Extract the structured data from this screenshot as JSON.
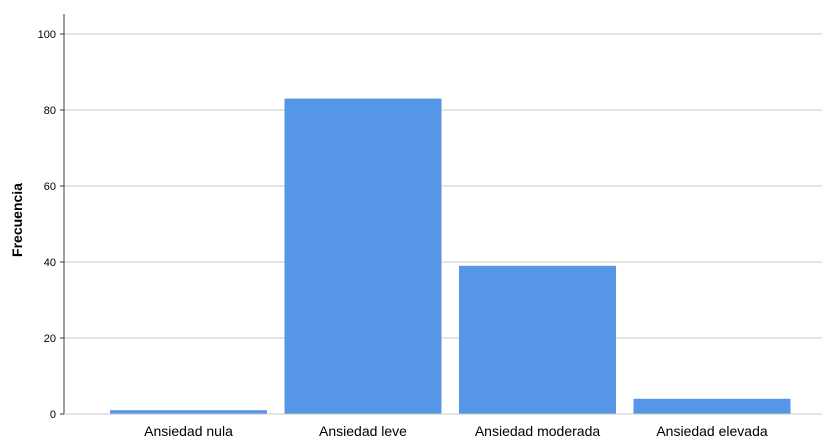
{
  "chart_data": {
    "type": "bar",
    "title": "",
    "xlabel": "",
    "ylabel": "Frecuencia",
    "categories": [
      "Ansiedad nula",
      "Ansiedad leve",
      "Ansiedad moderada",
      "Ansiedad elevada"
    ],
    "values": [
      1,
      83,
      39,
      4
    ],
    "ylim": [
      0,
      105
    ],
    "yticks": [
      0,
      20,
      40,
      60,
      80,
      100
    ],
    "grid": true,
    "colors": {
      "bar": "#5596E6",
      "grid": "#C9C9C9",
      "axis": "#3A3A3A"
    }
  }
}
